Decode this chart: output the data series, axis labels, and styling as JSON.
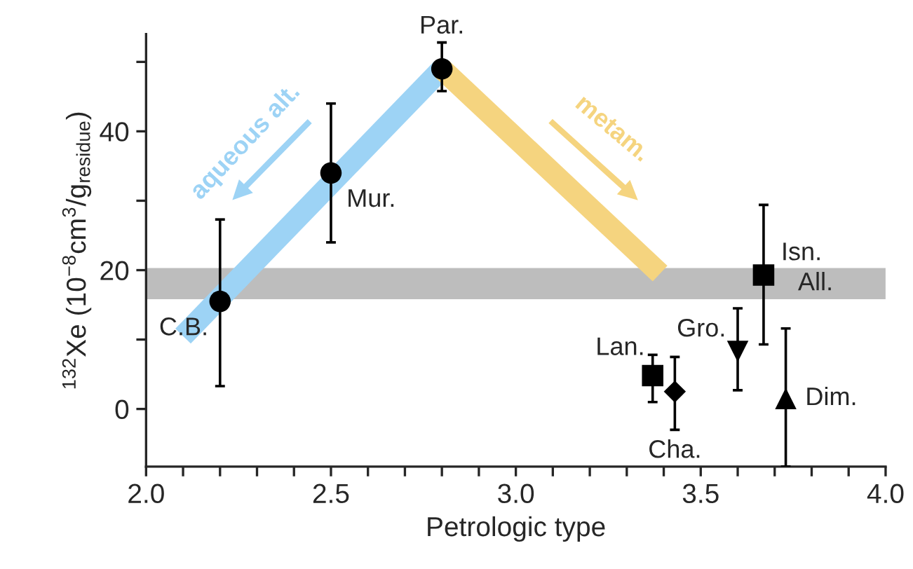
{
  "chart_data": {
    "type": "scatter",
    "xlabel": "Petrologic type",
    "ylabel": "$^{132}$Xe (10$^{−8}$cm$^{3}$/g$_{residue}$)",
    "xlim": [
      2.0,
      4.0
    ],
    "ylim": [
      -8.3,
      54
    ],
    "xticks": [
      {
        "value": 2.0,
        "label": "2.0"
      },
      {
        "value": 2.1,
        "label": null
      },
      {
        "value": 2.2,
        "label": null
      },
      {
        "value": 2.3,
        "label": null
      },
      {
        "value": 2.4,
        "label": null
      },
      {
        "value": 2.5,
        "label": "2.5"
      },
      {
        "value": 2.6,
        "label": null
      },
      {
        "value": 2.7,
        "label": null
      },
      {
        "value": 2.8,
        "label": null
      },
      {
        "value": 2.9,
        "label": null
      },
      {
        "value": 3.0,
        "label": "3.0"
      },
      {
        "value": 3.1,
        "label": null
      },
      {
        "value": 3.2,
        "label": null
      },
      {
        "value": 3.3,
        "label": null
      },
      {
        "value": 3.4,
        "label": null
      },
      {
        "value": 3.5,
        "label": "3.5"
      },
      {
        "value": 3.6,
        "label": null
      },
      {
        "value": 3.7,
        "label": null
      },
      {
        "value": 3.8,
        "label": null
      },
      {
        "value": 3.9,
        "label": null
      },
      {
        "value": 4.0,
        "label": "4.0"
      }
    ],
    "yticks": [
      0,
      {
        "value": 10,
        "label": null
      },
      20,
      {
        "value": 30,
        "label": null
      },
      40,
      {
        "value": 50,
        "label": null
      }
    ],
    "grid": false,
    "legend": false,
    "series": [
      {
        "type": "line",
        "color": "#9dd3f5",
        "x": [
          2.1,
          2.8
        ],
        "values": [
          10.5,
          49
        ]
      },
      {
        "type": "line",
        "color": "#f5d47f",
        "x": [
          2.8,
          3.39
        ],
        "values": [
          49,
          19.5
        ]
      },
      {
        "name": "C.B.",
        "color": "#000000",
        "marker": "circle",
        "x": [
          2.2
        ],
        "values": [
          15.5
        ],
        "errors": [
          [
            3.3,
            27.3
          ]
        ]
      },
      {
        "name": "Mur.",
        "color": "#000000",
        "marker": "circle",
        "x": [
          2.5
        ],
        "values": [
          34
        ],
        "errors": [
          [
            24,
            44
          ]
        ]
      },
      {
        "name": "Par.",
        "color": "#000000",
        "marker": "circle",
        "x": [
          2.8
        ],
        "values": [
          49
        ],
        "errors": [
          [
            45.8,
            52.8
          ]
        ]
      },
      {
        "name": "Lan.",
        "color": "#000000",
        "marker": "square",
        "x": [
          3.37
        ],
        "values": [
          4.8
        ],
        "errors": [
          [
            1,
            7.8
          ]
        ]
      },
      {
        "name": "Cha.",
        "color": "#000000",
        "marker": "diamond",
        "x": [
          3.43
        ],
        "values": [
          2.5
        ],
        "errors": [
          [
            -3,
            7.5
          ]
        ]
      },
      {
        "name": "Gro.",
        "color": "#000000",
        "marker": "triangle_down",
        "x": [
          3.6
        ],
        "values": [
          8.3
        ],
        "errors": [
          [
            2.7,
            14.5
          ]
        ]
      },
      {
        "name": "Isn.",
        "color": "#000000",
        "marker": "square",
        "x": [
          3.67
        ],
        "values": [
          19.3
        ],
        "errors": [
          [
            9.3,
            29.4
          ]
        ]
      },
      {
        "name": "Dim.",
        "color": "#000000",
        "marker": "triangle",
        "x": [
          3.73
        ],
        "values": [
          1.5
        ],
        "errors": [
          [
            -8.3,
            11.6
          ]
        ]
      }
    ],
    "bands": [
      {
        "axis": "y",
        "from": 15.8,
        "to": 20.3,
        "label": "All.",
        "color": "#bdbdbd"
      }
    ],
    "annotations": [
      "aqueous alt.",
      "metam."
    ]
  }
}
